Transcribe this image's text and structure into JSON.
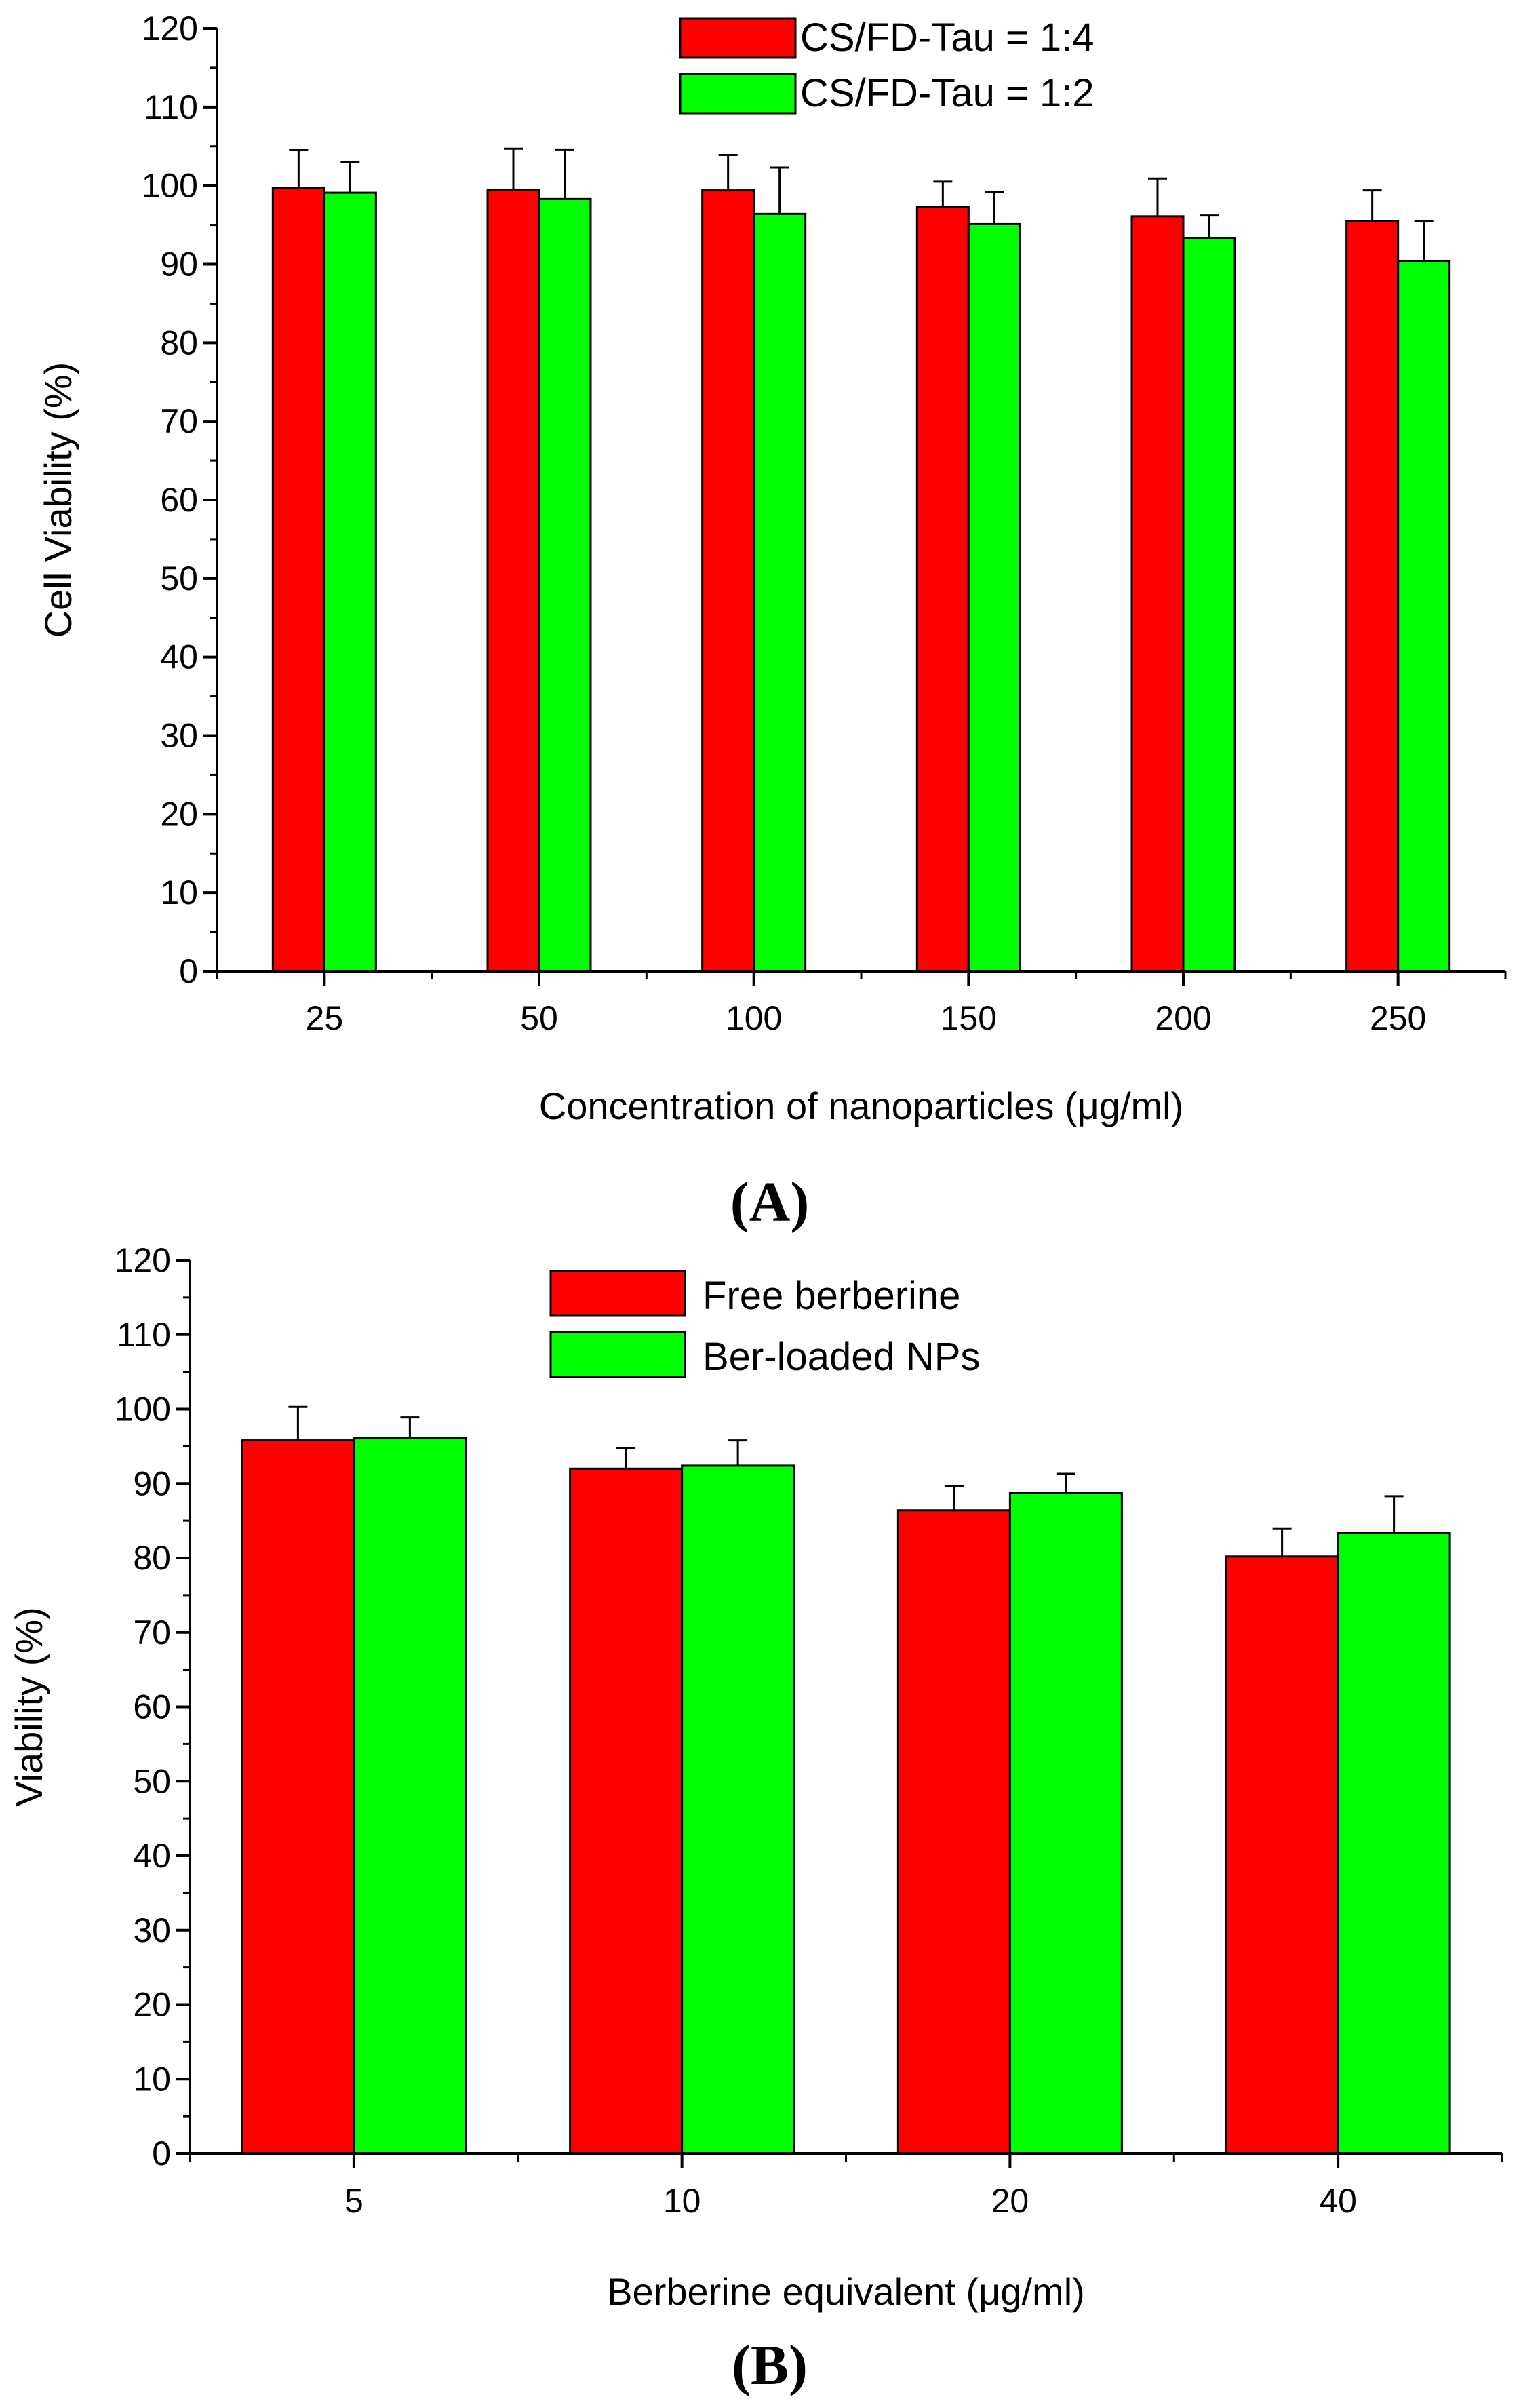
{
  "chart_data": [
    {
      "type": "bar",
      "panel_label": "(A)",
      "xlabel": "Concentration of nanoparticles (μg/ml)",
      "ylabel": "Cell Viability (%)",
      "categories": [
        "25",
        "50",
        "100",
        "150",
        "200",
        "250"
      ],
      "ylim": [
        0,
        120
      ],
      "yticks": [
        0,
        10,
        20,
        30,
        40,
        50,
        60,
        70,
        80,
        90,
        100,
        110,
        120
      ],
      "grid": false,
      "legend_position": "top-center",
      "series": [
        {
          "name": "CS/FD-Tau = 1:4",
          "color": "#ff0000",
          "values": [
            99.7,
            99.5,
            99.4,
            97.3,
            96.1,
            95.5
          ],
          "errors": [
            4.8,
            5.2,
            4.5,
            3.2,
            4.8,
            3.9
          ]
        },
        {
          "name": "CS/FD-Tau = 1:2",
          "color": "#00ff00",
          "values": [
            99.1,
            98.3,
            96.4,
            95.1,
            93.3,
            90.4
          ],
          "errors": [
            3.9,
            6.3,
            5.9,
            4.1,
            2.9,
            5.1
          ]
        }
      ]
    },
    {
      "type": "bar",
      "panel_label": "(B)",
      "xlabel": "Berberine equivalent (μg/ml)",
      "ylabel": "Viability (%)",
      "categories": [
        "5",
        "10",
        "20",
        "40"
      ],
      "ylim": [
        0,
        120
      ],
      "yticks": [
        0,
        10,
        20,
        30,
        40,
        50,
        60,
        70,
        80,
        90,
        100,
        110,
        120
      ],
      "grid": false,
      "legend_position": "top-center",
      "series": [
        {
          "name": "Free berberine",
          "color": "#ff0000",
          "values": [
            95.8,
            92.0,
            86.4,
            80.2
          ],
          "errors": [
            4.5,
            2.8,
            3.3,
            3.7
          ]
        },
        {
          "name": "Ber-loaded NPs",
          "color": "#00ff00",
          "values": [
            96.1,
            92.4,
            88.7,
            83.4
          ],
          "errors": [
            2.8,
            3.4,
            2.6,
            4.9
          ]
        }
      ]
    }
  ]
}
